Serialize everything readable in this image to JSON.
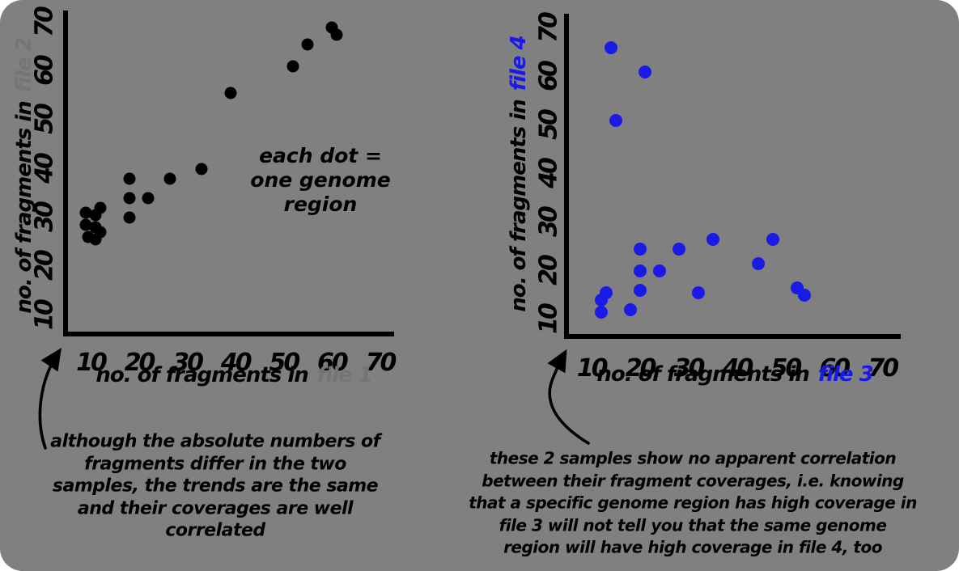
{
  "colors": {
    "page_background": "#ffffff",
    "panel_background": "#808080",
    "ink": "#000000",
    "accent_blue": "#1a1ae6",
    "faint_label": "#757575"
  },
  "chart_data": [
    {
      "type": "scatter",
      "xlabel_prefix": "no. of fragments in",
      "xlabel_file": "file 1",
      "ylabel_prefix": "no. of fragments in",
      "ylabel_file": "file 2",
      "file_label_color": "#757575",
      "dot_color": "#000000",
      "xticks": [
        10,
        20,
        30,
        40,
        50,
        60,
        70
      ],
      "yticks": [
        10,
        20,
        30,
        40,
        50,
        60,
        70
      ],
      "xlim": [
        4.8,
        72.6
      ],
      "ylim": [
        6.3,
        72.3
      ],
      "grid": false,
      "legend": false,
      "points": [
        [
          9,
          31
        ],
        [
          11,
          30.5
        ],
        [
          12,
          32
        ],
        [
          9,
          28.5
        ],
        [
          11,
          28
        ],
        [
          12,
          27
        ],
        [
          9.5,
          26
        ],
        [
          11,
          25.5
        ],
        [
          18,
          30
        ],
        [
          18,
          34
        ],
        [
          22,
          34
        ],
        [
          18,
          38
        ],
        [
          26.5,
          38
        ],
        [
          33,
          40
        ],
        [
          39,
          55.5
        ],
        [
          52,
          61
        ],
        [
          55,
          65.5
        ],
        [
          60,
          69
        ],
        [
          61,
          67.5
        ]
      ],
      "annotation": [
        "each dot =",
        "one genome",
        "region"
      ],
      "caption": [
        "although the absolute numbers of",
        "fragments differ in the two",
        "samples, the trends are the same",
        "and their coverages are well",
        "correlated"
      ]
    },
    {
      "type": "scatter",
      "xlabel_prefix": "no. of fragments in",
      "xlabel_file": "file 3",
      "ylabel_prefix": "no. of fragments in",
      "ylabel_file": "file 4",
      "file_label_color": "#1a1ae6",
      "dot_color": "#1a1ae6",
      "xticks": [
        10,
        20,
        30,
        40,
        50,
        60,
        70
      ],
      "yticks": [
        10,
        20,
        30,
        40,
        50,
        60,
        70
      ],
      "xlim": [
        4.87,
        73.3
      ],
      "ylim": [
        6.55,
        72.8
      ],
      "grid": false,
      "legend": false,
      "points": [
        [
          14,
          66
        ],
        [
          21,
          61
        ],
        [
          15,
          51
        ],
        [
          20,
          24.5
        ],
        [
          28,
          24.5
        ],
        [
          35,
          26.5
        ],
        [
          47.5,
          26.5
        ],
        [
          20,
          20
        ],
        [
          24,
          20
        ],
        [
          44.5,
          21.5
        ],
        [
          20,
          16
        ],
        [
          13,
          15.5
        ],
        [
          12,
          14
        ],
        [
          12,
          11.5
        ],
        [
          18,
          12
        ],
        [
          32,
          15.5
        ],
        [
          52.5,
          16.5
        ],
        [
          54,
          15
        ]
      ],
      "annotation": [],
      "caption": [
        "these 2 samples show no apparent correlation",
        "between their fragment coverages, i.e. knowing",
        "that a specific genome region has high coverage in",
        "file 3 will not tell you that the same genome",
        "region will have high coverage in file 4, too"
      ]
    }
  ]
}
